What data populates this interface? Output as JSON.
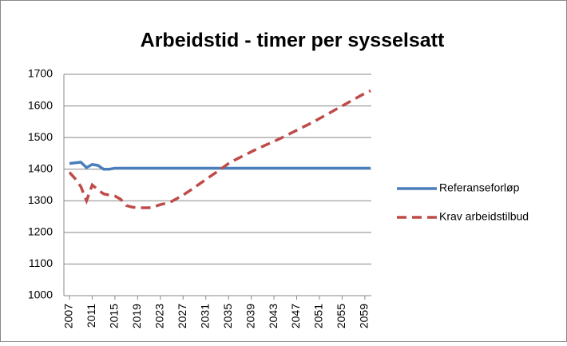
{
  "chart_data": {
    "type": "line",
    "title": "Arbeidstid - timer per sysselsatt",
    "x": [
      2007,
      2008,
      2009,
      2010,
      2011,
      2012,
      2013,
      2014,
      2015,
      2016,
      2017,
      2018,
      2019,
      2020,
      2021,
      2022,
      2023,
      2024,
      2025,
      2026,
      2027,
      2028,
      2029,
      2030,
      2031,
      2032,
      2033,
      2034,
      2035,
      2036,
      2037,
      2038,
      2039,
      2040,
      2041,
      2042,
      2043,
      2044,
      2045,
      2046,
      2047,
      2048,
      2049,
      2050,
      2051,
      2052,
      2053,
      2054,
      2055,
      2056,
      2057,
      2058,
      2059,
      2060
    ],
    "series": [
      {
        "name": "Referanseforløp",
        "color": "#4a7ebb",
        "dash": false,
        "values": [
          1418,
          1420,
          1422,
          1405,
          1415,
          1412,
          1400,
          1400,
          1403,
          1403,
          1403,
          1403,
          1403,
          1403,
          1403,
          1403,
          1403,
          1403,
          1403,
          1403,
          1403,
          1403,
          1403,
          1403,
          1403,
          1403,
          1403,
          1403,
          1403,
          1403,
          1403,
          1403,
          1403,
          1403,
          1403,
          1403,
          1403,
          1403,
          1403,
          1403,
          1403,
          1403,
          1403,
          1403,
          1403,
          1403,
          1403,
          1403,
          1403,
          1403,
          1403,
          1403,
          1403,
          1403
        ]
      },
      {
        "name": "Krav arbeidstilbud",
        "color": "#be4b48",
        "dash": true,
        "values": [
          1390,
          1370,
          1345,
          1300,
          1350,
          1335,
          1322,
          1318,
          1315,
          1305,
          1285,
          1280,
          1278,
          1278,
          1278,
          1282,
          1288,
          1292,
          1298,
          1308,
          1318,
          1330,
          1342,
          1355,
          1367,
          1380,
          1392,
          1405,
          1418,
          1428,
          1437,
          1446,
          1455,
          1464,
          1472,
          1480,
          1488,
          1496,
          1505,
          1514,
          1523,
          1532,
          1541,
          1550,
          1560,
          1570,
          1580,
          1590,
          1600,
          1610,
          1620,
          1630,
          1640,
          1648
        ]
      }
    ],
    "xlim": [
      2007,
      2060
    ],
    "xticks": [
      2007,
      2011,
      2015,
      2019,
      2023,
      2027,
      2031,
      2035,
      2039,
      2043,
      2047,
      2051,
      2055,
      2059
    ],
    "ylim": [
      1000,
      1700
    ],
    "yticks": [
      1000,
      1100,
      1200,
      1300,
      1400,
      1500,
      1600,
      1700
    ],
    "grid": true,
    "legend": "right"
  }
}
